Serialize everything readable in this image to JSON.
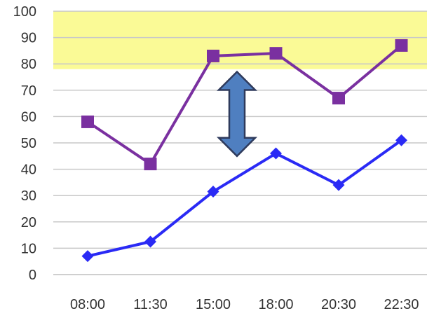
{
  "chart_data": {
    "type": "line",
    "title": "",
    "xlabel": "",
    "ylabel": "",
    "categories": [
      "08:00",
      "11:30",
      "15:00",
      "18:00",
      "20:30",
      "22:30"
    ],
    "y_ticks": [
      "0",
      "10",
      "20",
      "30",
      "40",
      "50",
      "60",
      "70",
      "80",
      "90",
      "100"
    ],
    "ylim": [
      0,
      100
    ],
    "grid": true,
    "legend": "none",
    "highlight_band": {
      "from": 78,
      "to": 100,
      "color": "#fafa96"
    },
    "series": [
      {
        "values": [
          58,
          42,
          83,
          84,
          67,
          87
        ],
        "color": "#7a30a0",
        "marker": "square"
      },
      {
        "values": [
          7,
          12.5,
          31.5,
          46,
          34,
          51
        ],
        "color": "#2a2af5",
        "marker": "diamond"
      }
    ],
    "annotation": {
      "type": "double-arrow",
      "fill": "#4f7fc0",
      "stroke": "#2e3a5c",
      "y_from": 45,
      "y_to": 77
    }
  }
}
